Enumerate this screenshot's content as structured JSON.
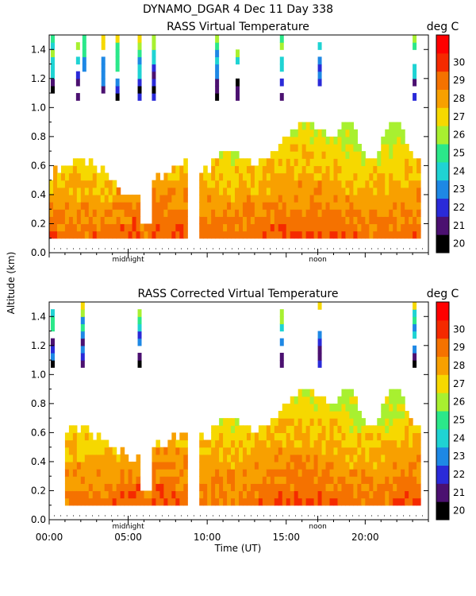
{
  "header": {
    "line1": "DYNAMO_DGAR    4 Dec 11 Day 338"
  },
  "colorbar": {
    "unit_label": "deg C",
    "levels": [
      20,
      21,
      22,
      23,
      24,
      25,
      26,
      27,
      28,
      29,
      30
    ],
    "colors": [
      "#000000",
      "#4b1070",
      "#2a2ad8",
      "#1e88e5",
      "#1fd3d3",
      "#2be88a",
      "#a8f030",
      "#f6d800",
      "#f8a000",
      "#f57200",
      "#f52a00",
      "#ff0000"
    ]
  },
  "chart_data": [
    {
      "type": "heatmap",
      "title": "RASS Virtual Temperature",
      "ylabel": "Altitude (km)",
      "xlabel": "",
      "ylim": [
        0.0,
        1.5
      ],
      "xlim": [
        0,
        24
      ],
      "y_ticks": [
        "0.0",
        "0.2",
        "0.4",
        "0.6",
        "0.8",
        "1.0",
        "1.2",
        "1.4"
      ],
      "markers": [
        "midnight",
        "noon"
      ],
      "marker_hours": [
        5,
        17
      ],
      "noise_level_km": 0.03
    },
    {
      "type": "heatmap",
      "title": "RASS Corrected Virtual Temperature",
      "ylabel": "Altitude (km)",
      "xlabel": "Time (UT)",
      "ylim": [
        0.0,
        1.5
      ],
      "xlim": [
        0,
        24
      ],
      "y_ticks": [
        "0.0",
        "0.2",
        "0.4",
        "0.6",
        "0.8",
        "1.0",
        "1.2",
        "1.4"
      ],
      "x_ticks": [
        "00:00",
        "05:00",
        "10:00",
        "15:00",
        "20:00"
      ],
      "x_tick_hours": [
        0,
        5,
        10,
        15,
        20
      ],
      "markers": [
        "midnight",
        "noon"
      ],
      "marker_hours": [
        5,
        17
      ],
      "noise_level_km": 0.03
    }
  ],
  "y_axis_label": "Altitude (km)",
  "x_axis_label": "Time (UT)"
}
